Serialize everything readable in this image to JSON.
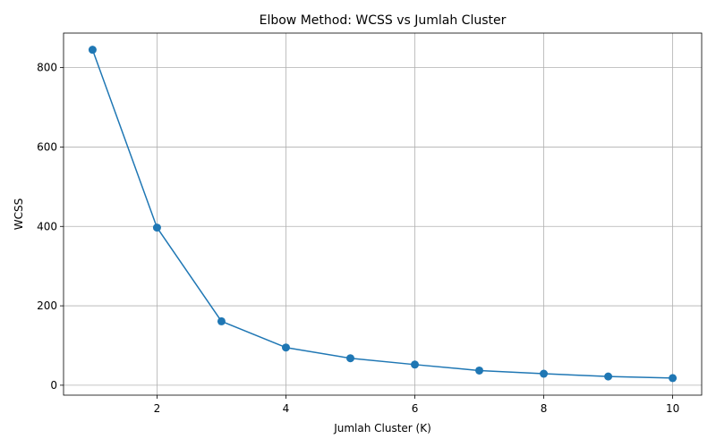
{
  "chart_data": {
    "type": "line",
    "title": "Elbow Method: WCSS vs Jumlah Cluster",
    "xlabel": "Jumlah Cluster (K)",
    "ylabel": "WCSS",
    "x": [
      1,
      2,
      3,
      4,
      5,
      6,
      7,
      8,
      9,
      10
    ],
    "series": [
      {
        "values": [
          845,
          397,
          161,
          95,
          68,
          52,
          37,
          29,
          22,
          18
        ]
      }
    ],
    "xlim": [
      0.55,
      10.45
    ],
    "ylim": [
      -25,
      887
    ],
    "xticks": [
      2,
      4,
      6,
      8,
      10
    ],
    "yticks": [
      0,
      200,
      400,
      600,
      800
    ],
    "grid": true,
    "marker": "circle",
    "color": "#1f77b4"
  }
}
